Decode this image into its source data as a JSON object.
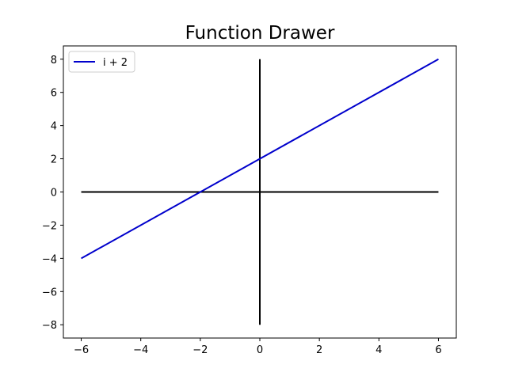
{
  "chart_data": {
    "type": "line",
    "title": "Function Drawer",
    "xlabel": "",
    "ylabel": "",
    "xlim": [
      -6.6,
      6.6
    ],
    "ylim": [
      -8.8,
      8.8
    ],
    "grid": false,
    "legend_position": "upper-left",
    "xticks": [
      -6,
      -4,
      -2,
      0,
      2,
      4,
      6
    ],
    "yticks": [
      -8,
      -6,
      -4,
      -2,
      0,
      2,
      4,
      6,
      8
    ],
    "xtick_labels": [
      "−6",
      "−4",
      "−2",
      "0",
      "2",
      "4",
      "6"
    ],
    "ytick_labels": [
      "−8",
      "−6",
      "−4",
      "−2",
      "0",
      "2",
      "4",
      "6",
      "8"
    ],
    "series": [
      {
        "name": "i + 2",
        "color": "#0000cc",
        "x": [
          -6,
          6
        ],
        "y": [
          -4,
          8
        ]
      }
    ],
    "axis_lines": [
      {
        "color": "#000000",
        "x": [
          -6,
          6
        ],
        "y": [
          0,
          0
        ]
      },
      {
        "color": "#000000",
        "x": [
          0,
          0
        ],
        "y": [
          -8,
          8
        ]
      }
    ]
  }
}
